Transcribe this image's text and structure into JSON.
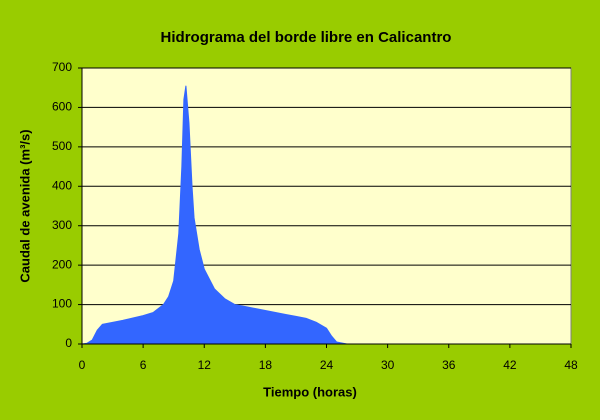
{
  "chart_data": {
    "type": "area",
    "title": "Hidrograma del borde libre en Calicantro",
    "x_label": "Tiempo (horas)",
    "y_label": "Caudal de avenida (m³/s)",
    "color": "#3366ff",
    "x": [
      0,
      0.5,
      1,
      1.5,
      2,
      3,
      4,
      5,
      6,
      7,
      8,
      8.5,
      9,
      9.5,
      9.8,
      10,
      10.2,
      10.5,
      10.8,
      11,
      11.5,
      12,
      13,
      14,
      15,
      16,
      17,
      18,
      19,
      20,
      21,
      22,
      23,
      24,
      24.5,
      25,
      26,
      48
    ],
    "values": [
      0,
      2,
      10,
      35,
      50,
      55,
      60,
      66,
      72,
      80,
      100,
      120,
      160,
      280,
      450,
      620,
      655,
      560,
      400,
      320,
      240,
      190,
      140,
      115,
      100,
      95,
      90,
      85,
      80,
      75,
      70,
      65,
      55,
      40,
      20,
      5,
      0,
      0
    ],
    "xlim": [
      0,
      48
    ],
    "xticks": [
      0,
      6,
      12,
      18,
      24,
      30,
      36,
      42,
      48
    ],
    "ylim": [
      0,
      700
    ],
    "yticks": [
      0,
      100,
      200,
      300,
      400,
      500,
      600,
      700
    ],
    "grid": true
  }
}
